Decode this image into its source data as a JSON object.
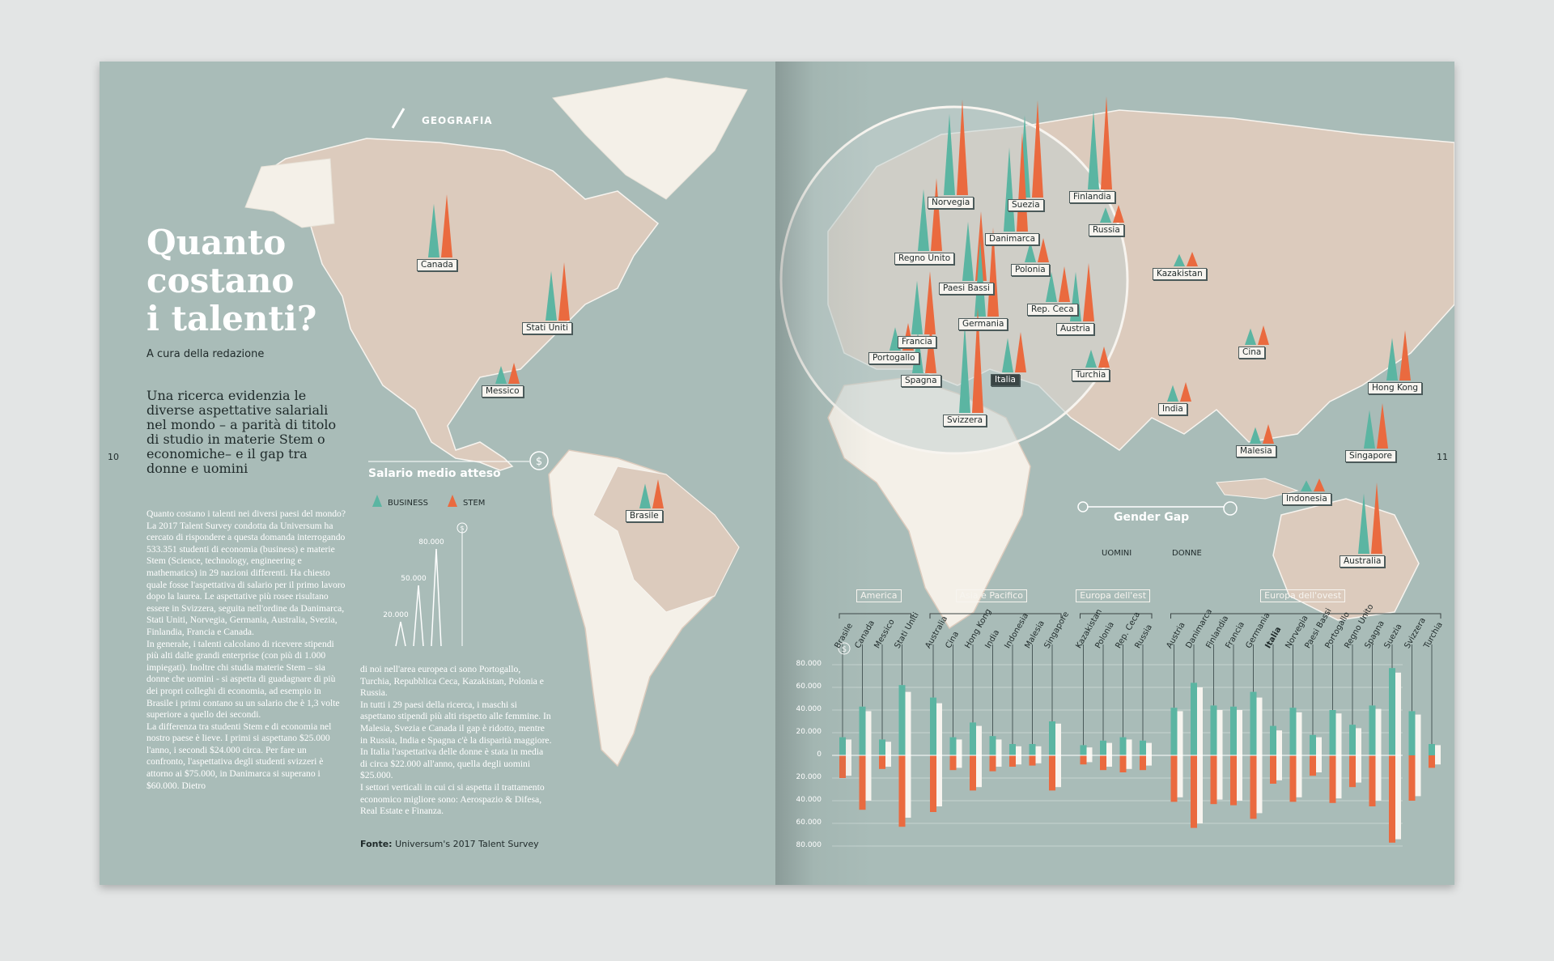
{
  "left_page": {
    "section": "GEOGRAFIA",
    "title_lines": [
      "Quanto",
      "costano",
      "i talenti?"
    ],
    "byline": "A cura della redazione",
    "subtitle": "Una ricerca evidenzia le diverse aspettative salariali nel mondo – a parità di titolo di studio in materie Stem o economiche– e il gap tra donne e uomini",
    "body_col1": "Quanto costano i talenti nei diversi paesi del mondo? La 2017 Talent Survey condotta da Universum ha cercato di rispondere a questa domanda interrogando 533.351 studenti di economia (business) e materie Stem (Science, technology, engineering e mathematics) in 29 nazioni differenti. Ha chiesto quale fosse l'aspettativa di salario per il primo lavoro dopo la laurea. Le aspettative più rosee risultano essere in Svizzera, seguita nell'ordine da Danimarca, Stati Uniti, Norvegia, Germania, Australia, Svezia, Finlandia, Francia e Canada.\nIn generale, i talenti calcolano di ricevere stipendi più alti dalle grandi enterprise (con più di 1.000 impiegati). Inoltre chi studia materie Stem – sia donne che uomini - si aspetta di guadagnare di più dei propri colleghi di economia, ad esempio in Brasile i primi contano su un salario che è 1,3 volte superiore a quello dei secondi.\nLa differenza tra studenti Stem e di economia nel nostro paese è lieve. I primi si aspettano $25.000 l'anno, i secondi $24.000 circa. Per fare un confronto, l'aspettativa degli studenti svizzeri è attorno ai $75.000, in Danimarca si superano i $60.000. Dietro",
    "body_col2": "di noi nell'area europea ci sono Portogallo, Turchia, Repubblica Ceca, Kazakistan, Polonia e Russia.\nIn tutti i 29 paesi della ricerca, i maschi si aspettano stipendi più alti rispetto alle femmine. In Malesia, Svezia e Canada il gap è ridotto, mentre in Russia, India e Spagna c'è la disparità maggiore.\nIn Italia l'aspettativa delle donne è stata in media di circa $22.000 all'anno, quella degli uomini $25.000.\nI settori verticali in cui ci si aspetta il trattamento economico migliore sono: Aerospazio & Difesa, Real Estate e Finanza.",
    "source_label": "Fonte:",
    "source_text": "Universum's 2017 Talent Survey",
    "page_number": "10"
  },
  "right_page": {
    "page_number": "11"
  },
  "legend": {
    "salary_title": "Salario medio atteso",
    "business_label": "BUSINESS",
    "stem_label": "STEM",
    "scale_ticks": [
      "20.000",
      "50.000",
      "80.000"
    ],
    "scale_values": [
      20000,
      50000,
      80000
    ],
    "gender_title": "Gender Gap",
    "men_label": "UOMINI",
    "women_label": "DONNE"
  },
  "colors": {
    "business": "#5bb5a2",
    "stem": "#ea6a3f",
    "land": "#dccbbd",
    "land_light": "#f4f0e8",
    "sea": "#a9bcb8"
  },
  "map_labels": [
    "Canada",
    "Stati Uniti",
    "Messico",
    "Brasile",
    "Norvegia",
    "Suezia",
    "Finlandia",
    "Danimarca",
    "Regno Unito",
    "Polonia",
    "Paesi Bassi",
    "Rep. Ceca",
    "Germania",
    "Austria",
    "Francia",
    "Portogallo",
    "Spagna",
    "Italia",
    "Svizzera",
    "Turchia",
    "Russia",
    "Kazakistan",
    "Cina",
    "Hong Kong",
    "India",
    "Malesia",
    "Singapore",
    "Indonesia",
    "Australia"
  ],
  "chart_data": {
    "type": "bar",
    "groups": [
      {
        "name": "America",
        "countries": [
          "Brasile",
          "Canada",
          "Messico",
          "Stati Uniti"
        ]
      },
      {
        "name": "Asia e Pacifico",
        "countries": [
          "Australia",
          "Cina",
          "Hong Kong",
          "India",
          "Indonesia",
          "Malesia",
          "Singapore"
        ]
      },
      {
        "name": "Europa dell'est",
        "countries": [
          "Kazakistan",
          "Polonia",
          "Rep. Ceca",
          "Russia"
        ]
      },
      {
        "name": "Europa dell'ovest",
        "countries": [
          "Austria",
          "Danimarca",
          "Finlandia",
          "Francia",
          "Germania",
          "Italia",
          "Norvegia",
          "Paesi Bassi",
          "Portogallo",
          "Regno Unito",
          "Spagna",
          "Suezia",
          "Svizzera",
          "Turchia"
        ]
      }
    ],
    "categories": [
      "Brasile",
      "Canada",
      "Messico",
      "Stati Uniti",
      "Australia",
      "Cina",
      "Hong Kong",
      "India",
      "Indonesia",
      "Malesia",
      "Singapore",
      "Kazakistan",
      "Polonia",
      "Rep. Ceca",
      "Russia",
      "Austria",
      "Danimarca",
      "Finlandia",
      "Francia",
      "Germania",
      "Italia",
      "Norvegia",
      "Paesi Bassi",
      "Portogallo",
      "Regno Unito",
      "Spagna",
      "Suezia",
      "Svizzera",
      "Turchia"
    ],
    "highlight": "Italia",
    "series": [
      {
        "name": "Business uomini",
        "values": [
          16000,
          43000,
          14000,
          62000,
          51000,
          16000,
          29000,
          17000,
          10000,
          10000,
          30000,
          9000,
          13000,
          16000,
          13000,
          42000,
          64000,
          44000,
          43000,
          56000,
          26000,
          42000,
          18000,
          40000,
          27000,
          44000,
          77000,
          39000,
          10000
        ]
      },
      {
        "name": "Business donne",
        "values": [
          14000,
          39000,
          12000,
          56000,
          46000,
          14000,
          26000,
          14000,
          8000,
          8000,
          28000,
          7000,
          11000,
          14000,
          11000,
          39000,
          60000,
          40000,
          40000,
          51000,
          22000,
          38000,
          16000,
          37000,
          24000,
          41000,
          73000,
          36000,
          9000
        ]
      },
      {
        "name": "Stem uomini",
        "values": [
          20000,
          48000,
          12000,
          63000,
          50000,
          13000,
          31000,
          14000,
          10000,
          9000,
          31000,
          8000,
          13000,
          15000,
          13000,
          41000,
          64000,
          43000,
          44000,
          56000,
          25000,
          41000,
          18000,
          42000,
          28000,
          45000,
          77000,
          40000,
          11000
        ]
      },
      {
        "name": "Stem donne",
        "values": [
          18000,
          40000,
          10000,
          55000,
          45000,
          11000,
          28000,
          10000,
          8000,
          7000,
          28000,
          6000,
          10000,
          12000,
          9000,
          37000,
          60000,
          39000,
          40000,
          51000,
          22000,
          37000,
          15000,
          38000,
          24000,
          40000,
          74000,
          36000,
          8000
        ]
      }
    ],
    "yticks": [
      "80.000",
      "60.000",
      "40.000",
      "20.000",
      "0",
      "20.000",
      "40.000",
      "60.000",
      "80.000"
    ],
    "ylim": [
      -80000,
      80000
    ]
  }
}
